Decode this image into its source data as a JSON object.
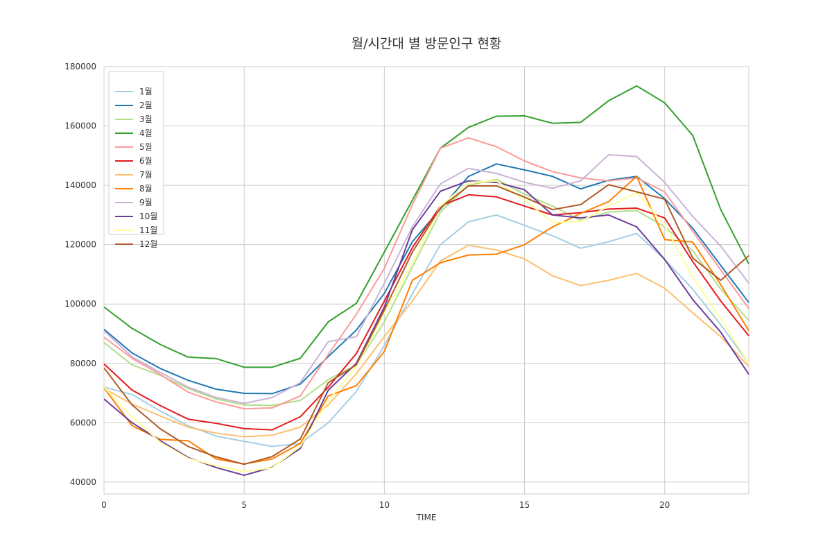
{
  "chart_data": {
    "type": "line",
    "title": "월/시간대 별 방문인구 현황",
    "xlabel": "TIME",
    "ylabel": "",
    "xlim": [
      0,
      23
    ],
    "ylim": [
      36000,
      180000
    ],
    "x_ticks": [
      0,
      5,
      10,
      15,
      20
    ],
    "y_ticks": [
      40000,
      60000,
      80000,
      100000,
      120000,
      140000,
      160000,
      180000
    ],
    "grid": true,
    "legend_position": "top-left",
    "x": [
      0,
      1,
      2,
      3,
      4,
      5,
      6,
      7,
      8,
      9,
      10,
      11,
      12,
      13,
      14,
      15,
      16,
      17,
      18,
      19,
      20,
      21,
      22,
      23
    ],
    "series": [
      {
        "name": "1월",
        "color": "#a6cee3",
        "values": [
          72000,
          69500,
          64000,
          59000,
          55500,
          53700,
          52000,
          53000,
          60000,
          70500,
          86000,
          103500,
          120000,
          127700,
          130000,
          126500,
          123000,
          118800,
          121000,
          123800,
          115000,
          105000,
          93000,
          80000
        ]
      },
      {
        "name": "2월",
        "color": "#1f78b4",
        "values": [
          91500,
          83500,
          78300,
          74300,
          71300,
          69900,
          69800,
          73000,
          82300,
          91200,
          103600,
          121000,
          132000,
          143000,
          147200,
          145200,
          143000,
          138800,
          141700,
          143000,
          135500,
          125500,
          113000,
          100500
        ]
      },
      {
        "name": "3월",
        "color": "#b2df8a",
        "values": [
          87000,
          79500,
          76000,
          71500,
          68000,
          66000,
          65800,
          67500,
          74500,
          79500,
          94000,
          112500,
          131000,
          140000,
          142000,
          137000,
          133000,
          128200,
          131000,
          131500,
          126000,
          118000,
          105000,
          94500
        ]
      },
      {
        "name": "4월",
        "color": "#33a02c",
        "values": [
          99000,
          91800,
          86400,
          82100,
          81600,
          78700,
          78700,
          81700,
          94000,
          100200,
          117500,
          135000,
          152500,
          159500,
          163300,
          163400,
          160900,
          161200,
          168500,
          173500,
          167800,
          156800,
          131800,
          113500
        ]
      },
      {
        "name": "5월",
        "color": "#fb9a99",
        "values": [
          88800,
          81700,
          76300,
          70300,
          67000,
          64700,
          65000,
          69000,
          83000,
          96500,
          112000,
          133500,
          152500,
          156000,
          153000,
          148200,
          144600,
          142500,
          141500,
          142500,
          137800,
          124500,
          111500,
          98500
        ]
      },
      {
        "name": "6월",
        "color": "#e31a1c",
        "values": [
          79800,
          71000,
          65800,
          61200,
          59800,
          58000,
          57600,
          62000,
          72000,
          83300,
          101000,
          119000,
          133000,
          136800,
          136100,
          133000,
          130000,
          130800,
          132000,
          132300,
          129000,
          114300,
          101000,
          89300
        ]
      },
      {
        "name": "7월",
        "color": "#fdbf6f",
        "values": [
          71500,
          66300,
          62300,
          58500,
          56500,
          55300,
          55800,
          58500,
          66000,
          76500,
          89000,
          101000,
          114500,
          119800,
          118200,
          115200,
          109500,
          106200,
          108000,
          110300,
          105300,
          97000,
          89000,
          79000
        ]
      },
      {
        "name": "8월",
        "color": "#ff7f00",
        "values": [
          71800,
          59000,
          54400,
          53900,
          47800,
          46100,
          47800,
          53000,
          69000,
          72500,
          84000,
          108000,
          113900,
          116500,
          116800,
          120000,
          126000,
          130500,
          134500,
          143000,
          121700,
          120900,
          106500,
          91000
        ]
      },
      {
        "name": "9월",
        "color": "#cab2d6",
        "values": [
          91000,
          82200,
          77000,
          72000,
          68500,
          66500,
          68500,
          73500,
          87300,
          89000,
          107000,
          126000,
          140500,
          145700,
          144000,
          141000,
          139000,
          141500,
          150300,
          149700,
          141000,
          129500,
          119500,
          107000
        ]
      },
      {
        "name": "10월",
        "color": "#6a3d9a",
        "values": [
          68000,
          60000,
          54000,
          48300,
          44900,
          42300,
          45000,
          51300,
          71000,
          80000,
          99000,
          125000,
          138000,
          141500,
          141000,
          138500,
          130000,
          129000,
          130000,
          126000,
          115000,
          101500,
          90500,
          76300
        ]
      },
      {
        "name": "11월",
        "color": "#ffff99",
        "values": [
          72000,
          62000,
          53500,
          48000,
          45500,
          43600,
          44800,
          52000,
          67500,
          79000,
          97000,
          114000,
          133000,
          141000,
          141500,
          135000,
          127500,
          127800,
          133000,
          137500,
          126500,
          109000,
          95000,
          80000
        ]
      },
      {
        "name": "12월",
        "color": "#b15928",
        "values": [
          78500,
          66000,
          58000,
          52000,
          48500,
          46000,
          48600,
          54500,
          73500,
          79500,
          98000,
          117500,
          132400,
          139800,
          139800,
          136000,
          131800,
          133500,
          140200,
          137800,
          135300,
          115500,
          108000,
          116300
        ]
      }
    ]
  }
}
